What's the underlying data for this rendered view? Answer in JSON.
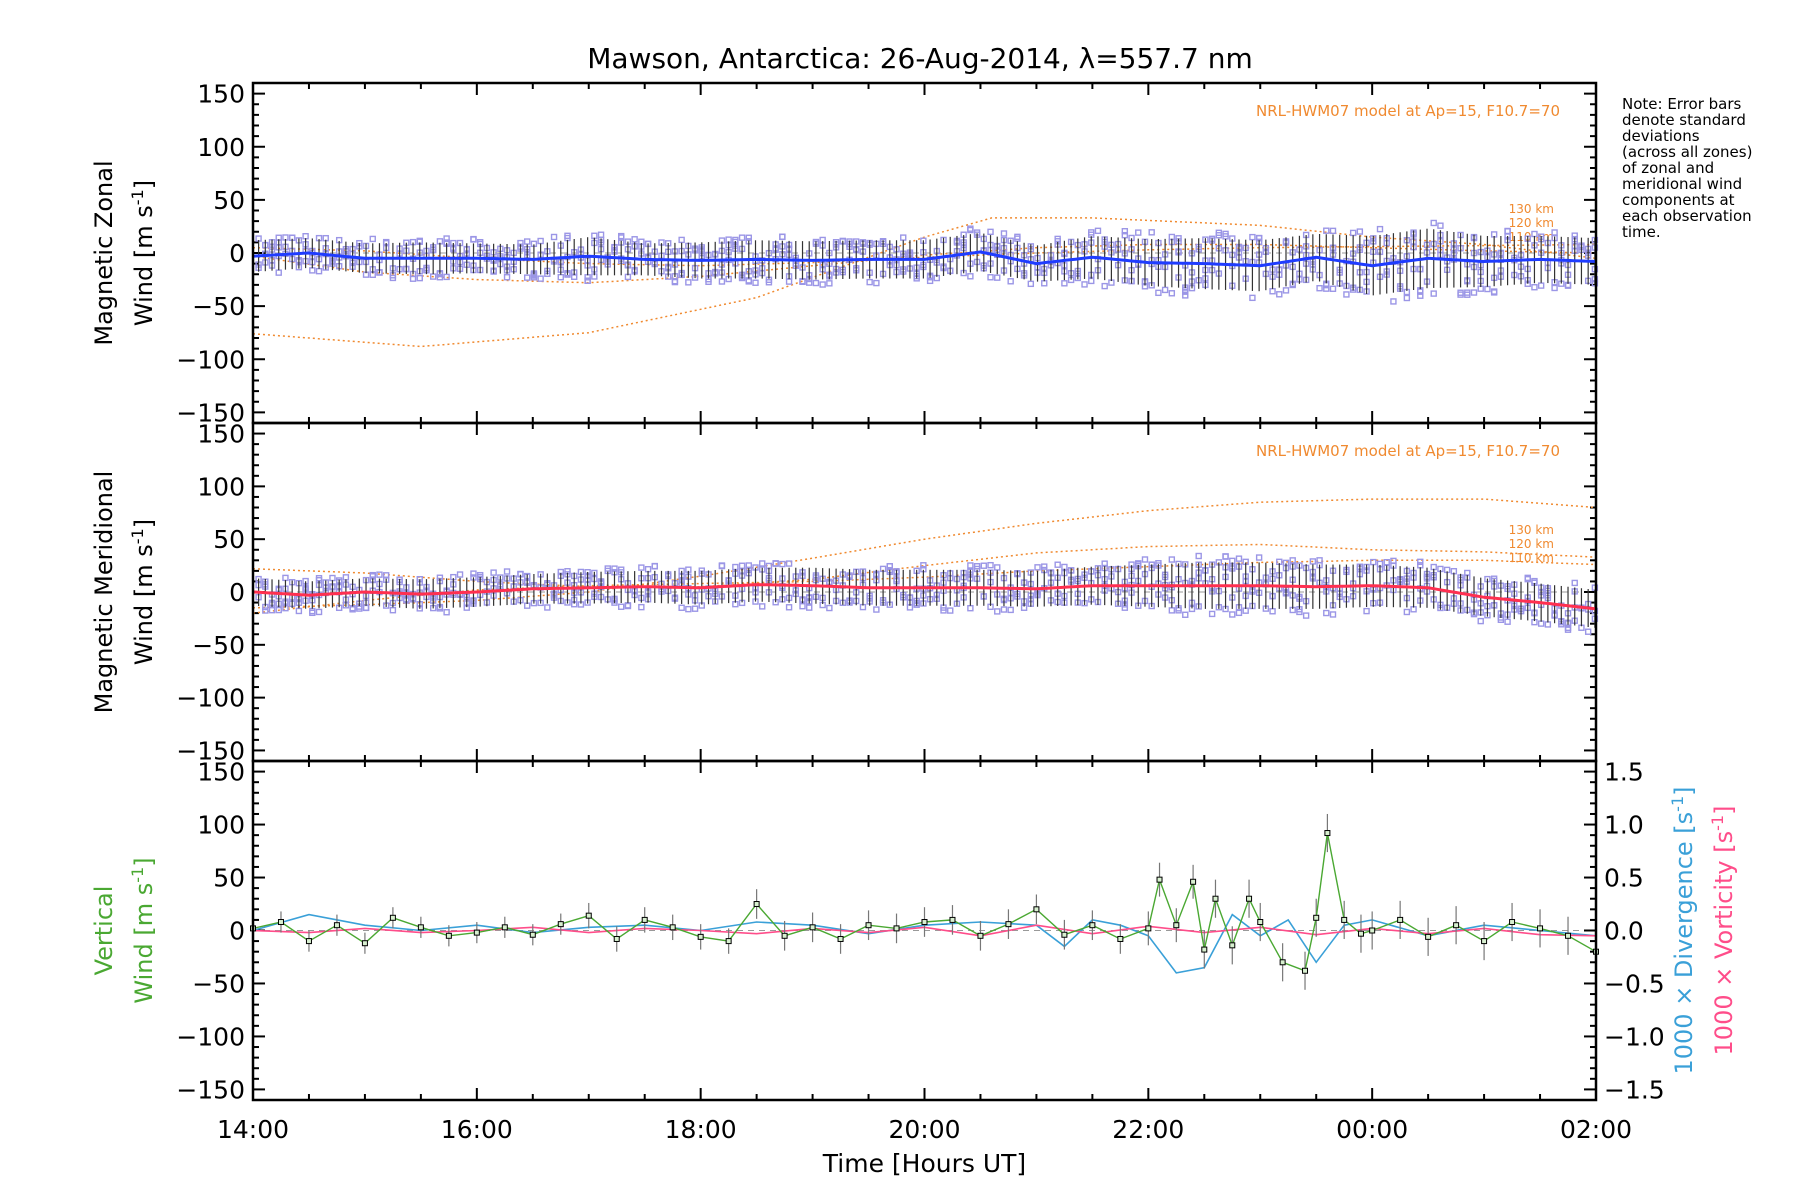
{
  "title": "Mawson, Antarctica: 26-Aug-2014, λ=557.7 nm",
  "note": [
    "Note: Error bars",
    "denote standard",
    "deviations",
    "(across all zones)",
    "of zonal and",
    "meridional wind",
    "components at",
    "each observation",
    "time."
  ],
  "colors": {
    "zonal": "#1f3cff",
    "meridional": "#ff3050",
    "vertical": "#4aa832",
    "divergence": "#3aa0d8",
    "vorticity": "#ff4d8a",
    "model": "#f08a30",
    "zones": "#9b96e6",
    "errorbar": "#333333"
  },
  "chart_data": [
    {
      "type": "line",
      "title": "Mawson, Antarctica: 26-Aug-2014, λ=557.7 nm",
      "ylabel": [
        "Magnetic Zonal",
        "Wind [m s",
        "-1",
        "]"
      ],
      "xlabel": "",
      "xlim": [
        "14:00",
        "02:00"
      ],
      "xticks": [
        "14:00",
        "16:00",
        "18:00",
        "20:00",
        "22:00",
        "00:00",
        "02:00"
      ],
      "ylim": [
        -160,
        160
      ],
      "yticks": [
        -150,
        -100,
        -50,
        0,
        50,
        100,
        150
      ],
      "annotation": "NRL-HWM07 model at Ap=15, F10.7=70",
      "series": [
        {
          "kind": "mean",
          "x_hours": [
            14.0,
            14.5,
            15.0,
            15.5,
            16.0,
            16.5,
            17.0,
            17.5,
            18.0,
            18.5,
            19.0,
            19.5,
            20.0,
            20.5,
            21.0,
            21.5,
            22.0,
            22.5,
            23.0,
            23.5,
            24.0,
            24.5,
            25.0,
            25.5,
            26.0
          ],
          "y": [
            -3,
            0,
            -5,
            -5,
            -5,
            -6,
            -3,
            -6,
            -7,
            -6,
            -7,
            -6,
            -6,
            1,
            -10,
            -4,
            -9,
            -10,
            -12,
            -4,
            -12,
            -5,
            -8,
            -6,
            -8
          ],
          "sd": [
            15,
            14,
            14,
            15,
            14,
            14,
            18,
            15,
            17,
            18,
            18,
            18,
            18,
            18,
            17,
            20,
            22,
            24,
            24,
            22,
            28,
            28,
            24,
            22,
            22
          ]
        },
        {
          "kind": "model",
          "label": "130 km",
          "x_hours": [
            14.0,
            15.5,
            17.0,
            18.5,
            20.0,
            20.6,
            21.5,
            23.0,
            24.0,
            25.0,
            26.0
          ],
          "y": [
            -76,
            -88,
            -75,
            -42,
            15,
            33,
            33,
            26,
            15,
            8,
            -5
          ]
        },
        {
          "kind": "model",
          "label": "120 km",
          "x_hours": [
            14.0,
            15.0,
            16.0,
            17.0,
            18.0,
            19.0,
            20.0,
            21.0,
            22.0,
            23.0,
            24.0,
            25.0,
            26.0
          ],
          "y": [
            -3,
            -18,
            -25,
            -28,
            -22,
            -12,
            -2,
            5,
            8,
            8,
            5,
            2,
            0
          ]
        },
        {
          "kind": "model",
          "label": "110 km",
          "x_hours": [
            14.0,
            15.0,
            16.0,
            17.0,
            18.0,
            19.0,
            20.0,
            21.0,
            22.0,
            23.0,
            24.0,
            25.0,
            26.0
          ],
          "y": [
            5,
            2,
            -5,
            -10,
            -12,
            -9,
            -4,
            0,
            3,
            5,
            6,
            7,
            8
          ]
        }
      ]
    },
    {
      "type": "line",
      "ylabel": [
        "Magnetic Meridional",
        "Wind [m s",
        "-1",
        "]"
      ],
      "xlabel": "",
      "xlim": [
        "14:00",
        "02:00"
      ],
      "ylim": [
        -160,
        160
      ],
      "yticks": [
        -150,
        -100,
        -50,
        0,
        50,
        100,
        150
      ],
      "annotation": "NRL-HWM07 model at Ap=15, F10.7=70",
      "series": [
        {
          "kind": "mean",
          "x_hours": [
            14.0,
            14.5,
            15.0,
            15.5,
            16.0,
            16.5,
            17.0,
            17.5,
            18.0,
            18.5,
            19.0,
            19.5,
            20.0,
            20.5,
            21.0,
            21.5,
            22.0,
            22.5,
            23.0,
            23.5,
            24.0,
            24.5,
            25.0,
            25.5,
            26.0
          ],
          "y": [
            0,
            -3,
            0,
            -2,
            0,
            3,
            4,
            5,
            4,
            7,
            6,
            4,
            4,
            4,
            3,
            6,
            6,
            6,
            6,
            5,
            6,
            4,
            -5,
            -10,
            -16
          ],
          "sd": [
            13,
            13,
            13,
            14,
            14,
            14,
            15,
            15,
            16,
            16,
            17,
            17,
            17,
            17,
            17,
            18,
            20,
            22,
            22,
            21,
            20,
            19,
            18,
            18,
            18
          ]
        },
        {
          "kind": "model",
          "label": "130 km",
          "x_hours": [
            14.0,
            15.0,
            16.0,
            17.0,
            18.0,
            19.0,
            20.0,
            21.0,
            22.0,
            23.0,
            24.0,
            25.0,
            26.0
          ],
          "y": [
            -15,
            -12,
            -8,
            0,
            15,
            32,
            50,
            65,
            77,
            85,
            88,
            88,
            80
          ]
        },
        {
          "kind": "model",
          "label": "120 km",
          "x_hours": [
            14.0,
            15.0,
            16.0,
            17.0,
            18.0,
            19.0,
            20.0,
            21.0,
            22.0,
            23.0,
            24.0,
            25.0,
            26.0
          ],
          "y": [
            22,
            18,
            10,
            5,
            5,
            12,
            25,
            37,
            43,
            45,
            40,
            38,
            33
          ]
        },
        {
          "kind": "model",
          "label": "110 km",
          "x_hours": [
            14.0,
            15.0,
            16.0,
            17.0,
            18.0,
            19.0,
            20.0,
            21.0,
            22.0,
            23.0,
            24.0,
            25.0,
            26.0
          ],
          "y": [
            -20,
            -8,
            2,
            6,
            8,
            10,
            14,
            20,
            24,
            28,
            30,
            30,
            26
          ]
        }
      ]
    },
    {
      "type": "line",
      "ylabel": [
        "Vertical",
        "Wind [m s",
        "-1",
        "]"
      ],
      "y2label_divergence": [
        "1000 × Divergence [s",
        "-1",
        "]"
      ],
      "y2label_vorticity": [
        "1000 × Vorticity [s",
        "-1",
        "]"
      ],
      "xlabel": "Time [Hours UT]",
      "xlim": [
        "14:00",
        "02:00"
      ],
      "xticks": [
        "14:00",
        "16:00",
        "18:00",
        "20:00",
        "22:00",
        "00:00",
        "02:00"
      ],
      "ylim": [
        -160,
        160
      ],
      "yticks": [
        -150,
        -100,
        -50,
        0,
        50,
        100,
        150
      ],
      "y2lim": [
        -1.6,
        1.6
      ],
      "y2ticks": [
        -1.5,
        -1.0,
        -0.5,
        0.0,
        0.5,
        1.0,
        1.5
      ],
      "y2ticklabels": [
        "−1.5",
        "−1.0",
        "−0.5",
        "0.0",
        "0.5",
        "1.0",
        "1.5"
      ],
      "series": [
        {
          "name": "",
          "kind": "vertical",
          "axis": "left",
          "x_hours": [
            14.0,
            14.25,
            14.5,
            14.75,
            15.0,
            15.25,
            15.5,
            15.75,
            16.0,
            16.25,
            16.5,
            16.75,
            17.0,
            17.25,
            17.5,
            17.75,
            18.0,
            18.25,
            18.5,
            18.75,
            19.0,
            19.25,
            19.5,
            19.75,
            20.0,
            20.25,
            20.5,
            20.75,
            21.0,
            21.25,
            21.5,
            21.75,
            22.0,
            22.1,
            22.25,
            22.4,
            22.5,
            22.6,
            22.75,
            22.9,
            23.0,
            23.2,
            23.4,
            23.5,
            23.6,
            23.75,
            23.9,
            24.0,
            24.25,
            24.5,
            24.75,
            25.0,
            25.25,
            25.5,
            25.75,
            26.0
          ],
          "y": [
            2,
            8,
            -10,
            5,
            -12,
            12,
            3,
            -5,
            -2,
            3,
            -4,
            6,
            14,
            -8,
            10,
            3,
            -6,
            -10,
            25,
            -5,
            3,
            -8,
            5,
            2,
            8,
            10,
            -5,
            6,
            20,
            -4,
            5,
            -8,
            2,
            48,
            5,
            46,
            -18,
            30,
            -14,
            30,
            8,
            -30,
            -38,
            12,
            92,
            10,
            -3,
            0,
            10,
            -6,
            5,
            -10,
            8,
            2,
            -5,
            -20
          ],
          "sd": [
            10,
            10,
            10,
            10,
            10,
            10,
            10,
            10,
            10,
            10,
            10,
            10,
            12,
            12,
            12,
            12,
            12,
            12,
            14,
            14,
            14,
            14,
            14,
            14,
            14,
            14,
            14,
            14,
            14,
            14,
            14,
            14,
            16,
            16,
            16,
            16,
            18,
            18,
            18,
            18,
            18,
            18,
            18,
            18,
            18,
            18,
            18,
            18,
            18,
            18,
            18,
            18,
            18,
            18,
            18,
            18
          ]
        },
        {
          "name": "",
          "kind": "divergence",
          "axis": "right",
          "x_hours": [
            14.0,
            14.5,
            15.0,
            15.5,
            16.0,
            16.5,
            17.0,
            17.5,
            18.0,
            18.5,
            19.0,
            19.5,
            20.0,
            20.5,
            21.0,
            21.25,
            21.5,
            21.75,
            22.0,
            22.25,
            22.5,
            22.75,
            23.0,
            23.25,
            23.5,
            23.75,
            24.0,
            24.5,
            25.0,
            25.5,
            26.0
          ],
          "y": [
            0.0,
            0.15,
            0.05,
            0.0,
            0.05,
            -0.02,
            0.03,
            0.05,
            0.0,
            0.08,
            0.05,
            -0.03,
            0.05,
            0.08,
            0.05,
            -0.15,
            0.1,
            0.05,
            -0.05,
            -0.4,
            -0.35,
            0.15,
            -0.05,
            0.1,
            -0.3,
            0.05,
            0.1,
            -0.05,
            0.05,
            0.0,
            -0.05
          ]
        },
        {
          "name": "",
          "kind": "vorticity",
          "axis": "right",
          "x_hours": [
            14.0,
            14.5,
            15.0,
            15.5,
            16.0,
            16.5,
            17.0,
            17.5,
            18.0,
            18.5,
            19.0,
            19.5,
            20.0,
            20.5,
            21.0,
            21.5,
            22.0,
            22.5,
            23.0,
            23.5,
            24.0,
            24.5,
            25.0,
            25.5,
            26.0
          ],
          "y": [
            0.0,
            -0.02,
            0.02,
            -0.02,
            0.0,
            0.03,
            -0.02,
            0.02,
            0.0,
            -0.03,
            0.02,
            -0.02,
            0.03,
            -0.05,
            0.05,
            -0.03,
            0.04,
            -0.02,
            0.03,
            -0.04,
            0.02,
            -0.03,
            0.02,
            -0.04,
            -0.05
          ]
        }
      ]
    }
  ]
}
